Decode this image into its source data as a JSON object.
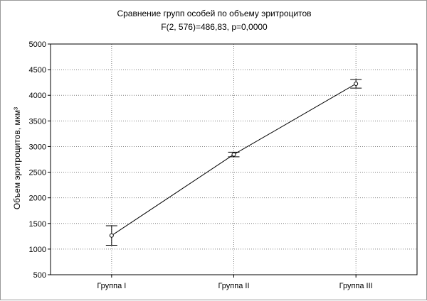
{
  "chart_data": {
    "type": "line",
    "title": "Сравнение групп особей по объему эритроцитов",
    "subtitle": "F(2, 576)=486,83, p=0,0000",
    "xlabel": "",
    "ylabel": "Объем эритроцитов, мкм³",
    "categories": [
      "Группа I",
      "Группа II",
      "Группа III"
    ],
    "series": [
      {
        "values": [
          1265,
          2845,
          4225
        ],
        "error_low": [
          1075,
          2800,
          4140
        ],
        "error_high": [
          1455,
          2890,
          4310
        ]
      }
    ],
    "ylim": [
      500,
      5000
    ],
    "yticks": [
      "500",
      "1000",
      "1500",
      "2000",
      "2500",
      "3000",
      "3500",
      "4000",
      "4500",
      "5000"
    ],
    "grid": true,
    "legend": "none"
  }
}
